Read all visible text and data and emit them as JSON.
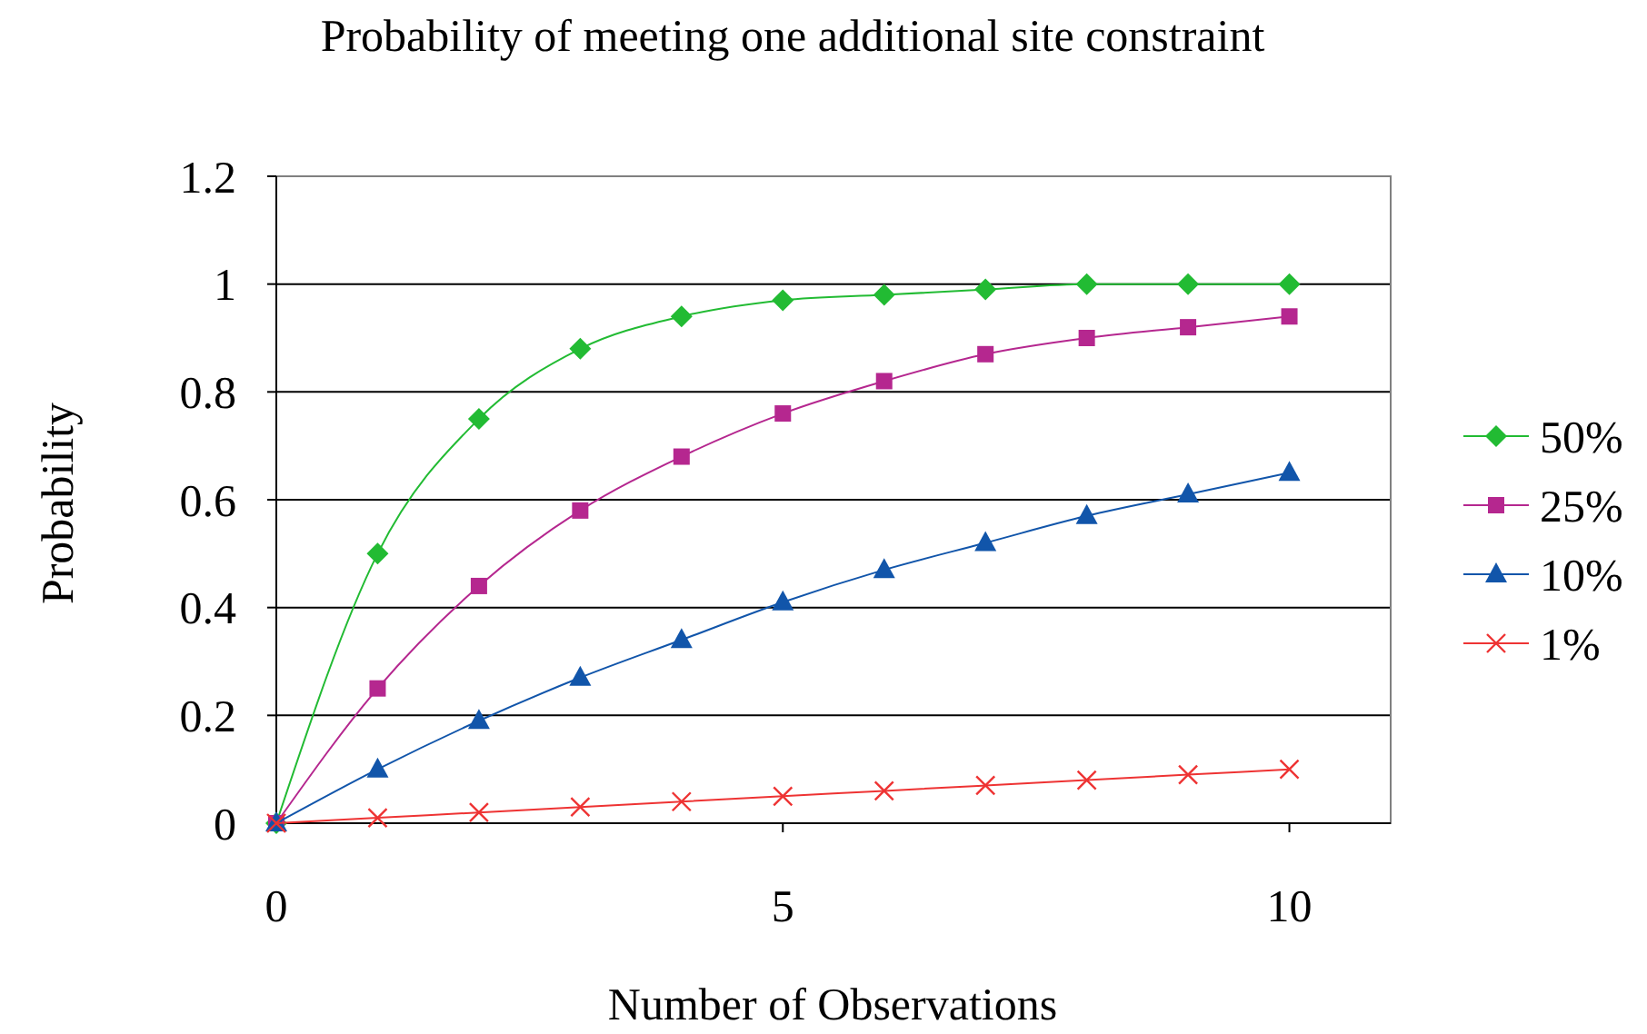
{
  "chart_data": {
    "type": "line",
    "title": "Probability of meeting one additional site constraint",
    "xlabel": "Number of Observations",
    "ylabel": "Probability",
    "x": [
      0,
      1,
      2,
      3,
      4,
      5,
      6,
      7,
      8,
      9,
      10
    ],
    "xlim": [
      0,
      11
    ],
    "xticks": [
      0,
      5,
      10
    ],
    "ylim": [
      0,
      1.2
    ],
    "yticks": [
      0,
      0.2,
      0.4,
      0.6,
      0.8,
      1,
      1.2
    ],
    "grid": "y",
    "legend": "right",
    "series": [
      {
        "name": "50%",
        "color": "#22bb33",
        "marker": "diamond",
        "values": [
          0,
          0.5,
          0.75,
          0.88,
          0.94,
          0.97,
          0.98,
          0.99,
          1,
          1,
          1
        ]
      },
      {
        "name": "25%",
        "color": "#b5278f",
        "marker": "square",
        "values": [
          0,
          0.25,
          0.44,
          0.58,
          0.68,
          0.76,
          0.82,
          0.87,
          0.9,
          0.92,
          0.94
        ]
      },
      {
        "name": "10%",
        "color": "#1155aa",
        "marker": "triangle",
        "values": [
          0,
          0.1,
          0.19,
          0.27,
          0.34,
          0.41,
          0.47,
          0.52,
          0.57,
          0.61,
          0.65
        ]
      },
      {
        "name": "1%",
        "color": "#ee3333",
        "marker": "cross",
        "values": [
          0,
          0.01,
          0.02,
          0.03,
          0.04,
          0.05,
          0.06,
          0.07,
          0.08,
          0.09,
          0.1
        ]
      }
    ]
  }
}
